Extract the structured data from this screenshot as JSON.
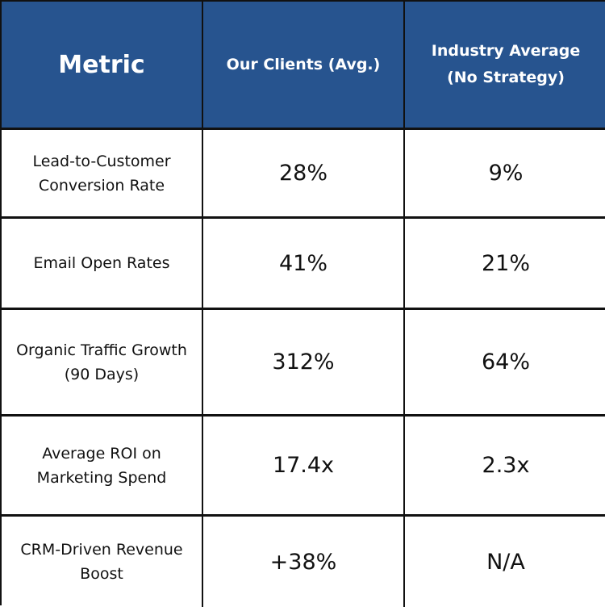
{
  "table": {
    "headers": [
      "Metric",
      "Our Clients (Avg.)",
      "Industry Average (No Strategy)"
    ],
    "header_color": "#27548f",
    "rows": [
      {
        "metric": "Lead-to-Customer Conversion Rate",
        "our_clients": "28%",
        "industry_average": "9%"
      },
      {
        "metric": "Email Open Rates",
        "our_clients": "41%",
        "industry_average": "21%"
      },
      {
        "metric": "Organic Traffic Growth (90 Days)",
        "our_clients": "312%",
        "industry_average": "64%"
      },
      {
        "metric": "Average ROI on Marketing Spend",
        "our_clients": "17.4x",
        "industry_average": "2.3x"
      },
      {
        "metric": "CRM-Driven Revenue Boost",
        "our_clients": "+38%",
        "industry_average": "N/A"
      }
    ]
  }
}
